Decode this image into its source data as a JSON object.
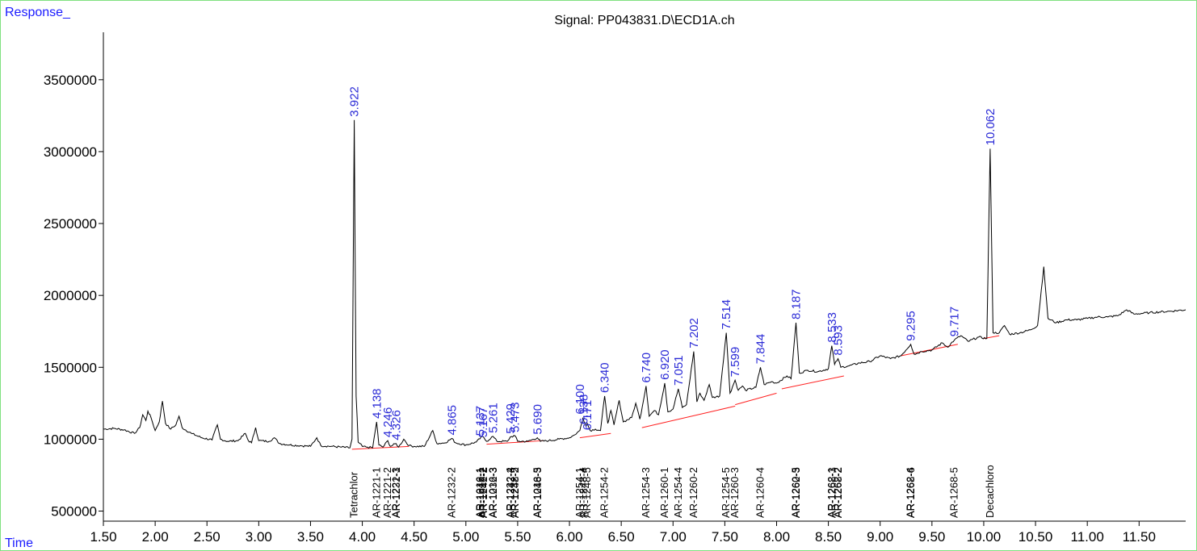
{
  "chart_data": {
    "type": "line",
    "title": "Signal: PP043831.D\\ECD1A.ch",
    "ylabel": "Response_",
    "xlabel": "Time",
    "xlim": [
      1.5,
      11.95
    ],
    "ylim": [
      430000,
      3830000
    ],
    "xticks": [
      "1.50",
      "2.00",
      "2.50",
      "3.00",
      "3.50",
      "4.00",
      "4.50",
      "5.00",
      "5.50",
      "6.00",
      "6.50",
      "7.00",
      "7.50",
      "8.00",
      "8.50",
      "9.00",
      "9.50",
      "10.00",
      "10.50",
      "11.00",
      "11.50"
    ],
    "yticks": [
      "500000",
      "1000000",
      "1500000",
      "2000000",
      "2500000",
      "3000000",
      "3500000"
    ],
    "series": [
      {
        "color": "#000000",
        "points": [
          [
            1.5,
            1070000
          ],
          [
            1.6,
            1075000
          ],
          [
            1.7,
            1065000
          ],
          [
            1.8,
            1040000
          ],
          [
            1.85,
            1080000
          ],
          [
            1.88,
            1170000
          ],
          [
            1.91,
            1130000
          ],
          [
            1.93,
            1195000
          ],
          [
            1.96,
            1150000
          ],
          [
            2.0,
            1060000
          ],
          [
            2.04,
            1120000
          ],
          [
            2.07,
            1265000
          ],
          [
            2.1,
            1110000
          ],
          [
            2.15,
            1070000
          ],
          [
            2.2,
            1100000
          ],
          [
            2.23,
            1160000
          ],
          [
            2.26,
            1080000
          ],
          [
            2.35,
            1040000
          ],
          [
            2.45,
            1010000
          ],
          [
            2.55,
            995000
          ],
          [
            2.6,
            1100000
          ],
          [
            2.63,
            1000000
          ],
          [
            2.7,
            985000
          ],
          [
            2.8,
            990000
          ],
          [
            2.87,
            1040000
          ],
          [
            2.9,
            990000
          ],
          [
            2.93,
            975000
          ],
          [
            2.97,
            1080000
          ],
          [
            3.0,
            990000
          ],
          [
            3.1,
            985000
          ],
          [
            3.15,
            1010000
          ],
          [
            3.2,
            970000
          ],
          [
            3.3,
            960000
          ],
          [
            3.4,
            955000
          ],
          [
            3.5,
            950000
          ],
          [
            3.56,
            1010000
          ],
          [
            3.6,
            955000
          ],
          [
            3.7,
            950000
          ],
          [
            3.8,
            945000
          ],
          [
            3.88,
            940000
          ],
          [
            3.9,
            1000000
          ],
          [
            3.922,
            3220000
          ],
          [
            3.94,
            1300000
          ],
          [
            3.96,
            980000
          ],
          [
            4.0,
            950000
          ],
          [
            4.05,
            945000
          ],
          [
            4.1,
            940000
          ],
          [
            4.138,
            1120000
          ],
          [
            4.16,
            960000
          ],
          [
            4.2,
            945000
          ],
          [
            4.246,
            990000
          ],
          [
            4.27,
            950000
          ],
          [
            4.326,
            970000
          ],
          [
            4.35,
            945000
          ],
          [
            4.4,
            1000000
          ],
          [
            4.45,
            955000
          ],
          [
            4.5,
            950000
          ],
          [
            4.6,
            950000
          ],
          [
            4.68,
            1060000
          ],
          [
            4.72,
            970000
          ],
          [
            4.8,
            975000
          ],
          [
            4.865,
            1005000
          ],
          [
            4.9,
            975000
          ],
          [
            5.0,
            960000
          ],
          [
            5.1,
            980000
          ],
          [
            5.16,
            1020000
          ],
          [
            5.2,
            985000
          ],
          [
            5.261,
            1020000
          ],
          [
            5.3,
            985000
          ],
          [
            5.4,
            985000
          ],
          [
            5.429,
            1015000
          ],
          [
            5.473,
            1025000
          ],
          [
            5.5,
            985000
          ],
          [
            5.6,
            985000
          ],
          [
            5.69,
            1010000
          ],
          [
            5.72,
            985000
          ],
          [
            5.8,
            990000
          ],
          [
            5.9,
            1000000
          ],
          [
            6.0,
            1010000
          ],
          [
            6.05,
            1030000
          ],
          [
            6.1,
            1060000
          ],
          [
            6.13,
            1150000
          ],
          [
            6.16,
            1090000
          ],
          [
            6.171,
            1110000
          ],
          [
            6.2,
            1060000
          ],
          [
            6.25,
            1070000
          ],
          [
            6.3,
            1060000
          ],
          [
            6.34,
            1300000
          ],
          [
            6.37,
            1110000
          ],
          [
            6.4,
            1200000
          ],
          [
            6.43,
            1100000
          ],
          [
            6.48,
            1270000
          ],
          [
            6.52,
            1120000
          ],
          [
            6.6,
            1150000
          ],
          [
            6.64,
            1250000
          ],
          [
            6.68,
            1140000
          ],
          [
            6.74,
            1370000
          ],
          [
            6.77,
            1160000
          ],
          [
            6.82,
            1200000
          ],
          [
            6.86,
            1170000
          ],
          [
            6.92,
            1390000
          ],
          [
            6.95,
            1190000
          ],
          [
            7.0,
            1210000
          ],
          [
            7.051,
            1350000
          ],
          [
            7.09,
            1220000
          ],
          [
            7.13,
            1240000
          ],
          [
            7.2,
            1610000
          ],
          [
            7.23,
            1260000
          ],
          [
            7.26,
            1320000
          ],
          [
            7.3,
            1270000
          ],
          [
            7.35,
            1380000
          ],
          [
            7.38,
            1290000
          ],
          [
            7.45,
            1300000
          ],
          [
            7.514,
            1740000
          ],
          [
            7.55,
            1320000
          ],
          [
            7.599,
            1410000
          ],
          [
            7.63,
            1340000
          ],
          [
            7.67,
            1370000
          ],
          [
            7.7,
            1340000
          ],
          [
            7.8,
            1360000
          ],
          [
            7.844,
            1500000
          ],
          [
            7.88,
            1380000
          ],
          [
            7.95,
            1400000
          ],
          [
            8.0,
            1390000
          ],
          [
            8.1,
            1440000
          ],
          [
            8.14,
            1420000
          ],
          [
            8.187,
            1810000
          ],
          [
            8.22,
            1460000
          ],
          [
            8.3,
            1480000
          ],
          [
            8.4,
            1470000
          ],
          [
            8.5,
            1490000
          ],
          [
            8.533,
            1650000
          ],
          [
            8.56,
            1520000
          ],
          [
            8.593,
            1560000
          ],
          [
            8.62,
            1500000
          ],
          [
            8.7,
            1510000
          ],
          [
            8.8,
            1530000
          ],
          [
            8.9,
            1540000
          ],
          [
            9.0,
            1580000
          ],
          [
            9.1,
            1560000
          ],
          [
            9.2,
            1580000
          ],
          [
            9.295,
            1660000
          ],
          [
            9.33,
            1590000
          ],
          [
            9.4,
            1610000
          ],
          [
            9.5,
            1620000
          ],
          [
            9.6,
            1670000
          ],
          [
            9.65,
            1640000
          ],
          [
            9.717,
            1690000
          ],
          [
            9.78,
            1720000
          ],
          [
            9.85,
            1680000
          ],
          [
            9.95,
            1710000
          ],
          [
            10.03,
            1700000
          ],
          [
            10.062,
            3020000
          ],
          [
            10.09,
            1740000
          ],
          [
            10.15,
            1740000
          ],
          [
            10.2,
            1790000
          ],
          [
            10.25,
            1730000
          ],
          [
            10.35,
            1740000
          ],
          [
            10.45,
            1760000
          ],
          [
            10.52,
            1790000
          ],
          [
            10.58,
            2200000
          ],
          [
            10.62,
            1840000
          ],
          [
            10.7,
            1810000
          ],
          [
            10.8,
            1830000
          ],
          [
            10.9,
            1830000
          ],
          [
            11.0,
            1840000
          ],
          [
            11.1,
            1850000
          ],
          [
            11.2,
            1850000
          ],
          [
            11.3,
            1860000
          ],
          [
            11.38,
            1900000
          ],
          [
            11.45,
            1870000
          ],
          [
            11.6,
            1880000
          ],
          [
            11.8,
            1890000
          ],
          [
            11.95,
            1900000
          ]
        ]
      }
    ],
    "baselines": [
      [
        [
          3.9,
          930000
        ],
        [
          4.45,
          950000
        ]
      ],
      [
        [
          5.2,
          965000
        ],
        [
          5.75,
          990000
        ]
      ],
      [
        [
          6.1,
          1010000
        ],
        [
          6.4,
          1040000
        ]
      ],
      [
        [
          6.7,
          1080000
        ],
        [
          7.6,
          1230000
        ]
      ],
      [
        [
          7.6,
          1240000
        ],
        [
          8.0,
          1320000
        ]
      ],
      [
        [
          8.05,
          1350000
        ],
        [
          8.65,
          1440000
        ]
      ],
      [
        [
          9.2,
          1580000
        ],
        [
          9.75,
          1660000
        ]
      ],
      [
        [
          10.0,
          1700000
        ],
        [
          10.15,
          1720000
        ]
      ]
    ],
    "peak_labels": [
      {
        "x": 3.922,
        "y": 3220000,
        "text": "3.922"
      },
      {
        "x": 4.138,
        "y": 1120000,
        "text": "4.138"
      },
      {
        "x": 4.246,
        "y": 990000,
        "text": "4.246"
      },
      {
        "x": 4.326,
        "y": 970000,
        "text": "4.326"
      },
      {
        "x": 4.865,
        "y": 1005000,
        "text": "4.865"
      },
      {
        "x": 5.137,
        "y": 1000000,
        "text": "5.137"
      },
      {
        "x": 5.167,
        "y": 990000,
        "text": "5.167"
      },
      {
        "x": 5.261,
        "y": 1020000,
        "text": "5.261"
      },
      {
        "x": 5.429,
        "y": 1015000,
        "text": "5.429"
      },
      {
        "x": 5.473,
        "y": 1025000,
        "text": "5.473"
      },
      {
        "x": 5.69,
        "y": 1010000,
        "text": "5.690"
      },
      {
        "x": 6.1,
        "y": 1150000,
        "text": "6.100"
      },
      {
        "x": 6.138,
        "y": 1080000,
        "text": "6.138"
      },
      {
        "x": 6.171,
        "y": 1040000,
        "text": "6.171"
      },
      {
        "x": 6.34,
        "y": 1300000,
        "text": "6.340"
      },
      {
        "x": 6.74,
        "y": 1370000,
        "text": "6.740"
      },
      {
        "x": 6.92,
        "y": 1390000,
        "text": "6.920"
      },
      {
        "x": 7.051,
        "y": 1350000,
        "text": "7.051"
      },
      {
        "x": 7.202,
        "y": 1610000,
        "text": "7.202"
      },
      {
        "x": 7.514,
        "y": 1740000,
        "text": "7.514"
      },
      {
        "x": 7.599,
        "y": 1410000,
        "text": "7.599"
      },
      {
        "x": 7.844,
        "y": 1500000,
        "text": "7.844"
      },
      {
        "x": 8.187,
        "y": 1810000,
        "text": "8.187"
      },
      {
        "x": 8.533,
        "y": 1650000,
        "text": "8.533"
      },
      {
        "x": 8.593,
        "y": 1560000,
        "text": "8.593"
      },
      {
        "x": 9.295,
        "y": 1660000,
        "text": "9.295"
      },
      {
        "x": 9.717,
        "y": 1690000,
        "text": "9.717"
      },
      {
        "x": 10.062,
        "y": 3020000,
        "text": "10.062"
      }
    ],
    "compound_labels": [
      {
        "x": 3.922,
        "text": "Tetrachlor"
      },
      {
        "x": 4.138,
        "text": "AR-1221-1"
      },
      {
        "x": 4.246,
        "text": "AR-1221-2"
      },
      {
        "x": 4.326,
        "text": "AR-1221-3"
      },
      {
        "x": 4.326,
        "text": "AR-1232-1"
      },
      {
        "x": 4.865,
        "text": "AR-1232-2"
      },
      {
        "x": 5.137,
        "text": "AR-1016-1"
      },
      {
        "x": 5.137,
        "text": "AR-1242-1"
      },
      {
        "x": 5.167,
        "text": "AR-1016-2"
      },
      {
        "x": 5.167,
        "text": "AR-1242-2"
      },
      {
        "x": 5.261,
        "text": "AR-1016-3"
      },
      {
        "x": 5.261,
        "text": "AR-1232-3"
      },
      {
        "x": 5.429,
        "text": "AR-1232-4"
      },
      {
        "x": 5.429,
        "text": "AR-1242-3"
      },
      {
        "x": 5.473,
        "text": "AR-1232-5"
      },
      {
        "x": 5.473,
        "text": "AR-1248-2"
      },
      {
        "x": 5.69,
        "text": "AR-1016-5"
      },
      {
        "x": 5.69,
        "text": "AR-1248-3"
      },
      {
        "x": 6.1,
        "text": "AR-1254-1"
      },
      {
        "x": 6.138,
        "text": "AR-1248-4"
      },
      {
        "x": 6.171,
        "text": "AR-1248-5"
      },
      {
        "x": 6.34,
        "text": "AR-1254-2"
      },
      {
        "x": 6.74,
        "text": "AR-1254-3"
      },
      {
        "x": 6.92,
        "text": "AR-1260-1"
      },
      {
        "x": 7.051,
        "text": "AR-1254-4"
      },
      {
        "x": 7.202,
        "text": "AR-1260-2"
      },
      {
        "x": 7.514,
        "text": "AR-1254-5"
      },
      {
        "x": 7.599,
        "text": "AR-1260-3"
      },
      {
        "x": 7.844,
        "text": "AR-1260-4"
      },
      {
        "x": 8.187,
        "text": "AR-1260-5"
      },
      {
        "x": 8.187,
        "text": "AR-1262-3"
      },
      {
        "x": 8.533,
        "text": "AR-1262-1"
      },
      {
        "x": 8.533,
        "text": "AR-1268-3"
      },
      {
        "x": 8.593,
        "text": "AR-1262-2"
      },
      {
        "x": 8.593,
        "text": "AR-1268-2"
      },
      {
        "x": 9.295,
        "text": "AR-1262-4"
      },
      {
        "x": 9.295,
        "text": "AR-1268-6"
      },
      {
        "x": 9.717,
        "text": "AR-1268-5"
      },
      {
        "x": 10.062,
        "text": "Decachloro"
      }
    ]
  }
}
